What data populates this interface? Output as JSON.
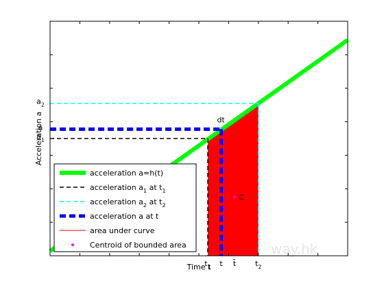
{
  "chart_data": {
    "type": "line",
    "xlabel": "Time t",
    "ylabel": "Acceleration a",
    "xlim": [
      0,
      10
    ],
    "ylim": [
      0,
      10
    ],
    "grid": false,
    "legend_position": "bottom-left",
    "line": {
      "x": [
        0,
        10
      ],
      "y": [
        0.2,
        9.2
      ]
    },
    "points": {
      "t1": 5.3,
      "t": 5.75,
      "t2": 7.0,
      "tbar": 6.2
    },
    "levels": {
      "a1": 5.0,
      "a": 5.4,
      "a2": 6.5
    },
    "centroid": {
      "x": 6.2,
      "y": 2.5
    },
    "x_annotations": [
      {
        "text": "t",
        "sub": "1",
        "x": 5.3
      },
      {
        "text": "t",
        "sub": "",
        "x": 5.75
      },
      {
        "text": "t̄",
        "sub": "",
        "x": 6.2
      },
      {
        "text": "t",
        "sub": "2",
        "x": 7.0
      }
    ],
    "y_annotations": [
      {
        "text": "a",
        "sub": "2",
        "y": 6.5
      },
      {
        "text": "a",
        "sub": "",
        "y": 5.4
      },
      {
        "text": "a",
        "sub": "1",
        "y": 5.0
      }
    ],
    "labels": {
      "dt": "dt",
      "centroid": "C"
    },
    "series": [
      {
        "name": "acceleration a=h(t)",
        "color": "#00ff00",
        "style": "solid-thick"
      },
      {
        "name_main": "acceleration a",
        "name_sub1": "1",
        "name_mid": " at t",
        "name_sub2": "1",
        "color": "#000000",
        "style": "dashed"
      },
      {
        "name_main": "acceleration a",
        "name_sub1": "2",
        "name_mid": " at t",
        "name_sub2": "2",
        "color": "#00ffff",
        "style": "dashed"
      },
      {
        "name": "acceleration a at t",
        "color": "#0000ff",
        "style": "dashed-thick"
      },
      {
        "name": "area under curve",
        "color": "#ff0000",
        "style": "solid-thin"
      },
      {
        "name": "Centroid of bounded area",
        "color": "#ff00ff",
        "style": "marker"
      }
    ],
    "watermark": "way.hk"
  }
}
